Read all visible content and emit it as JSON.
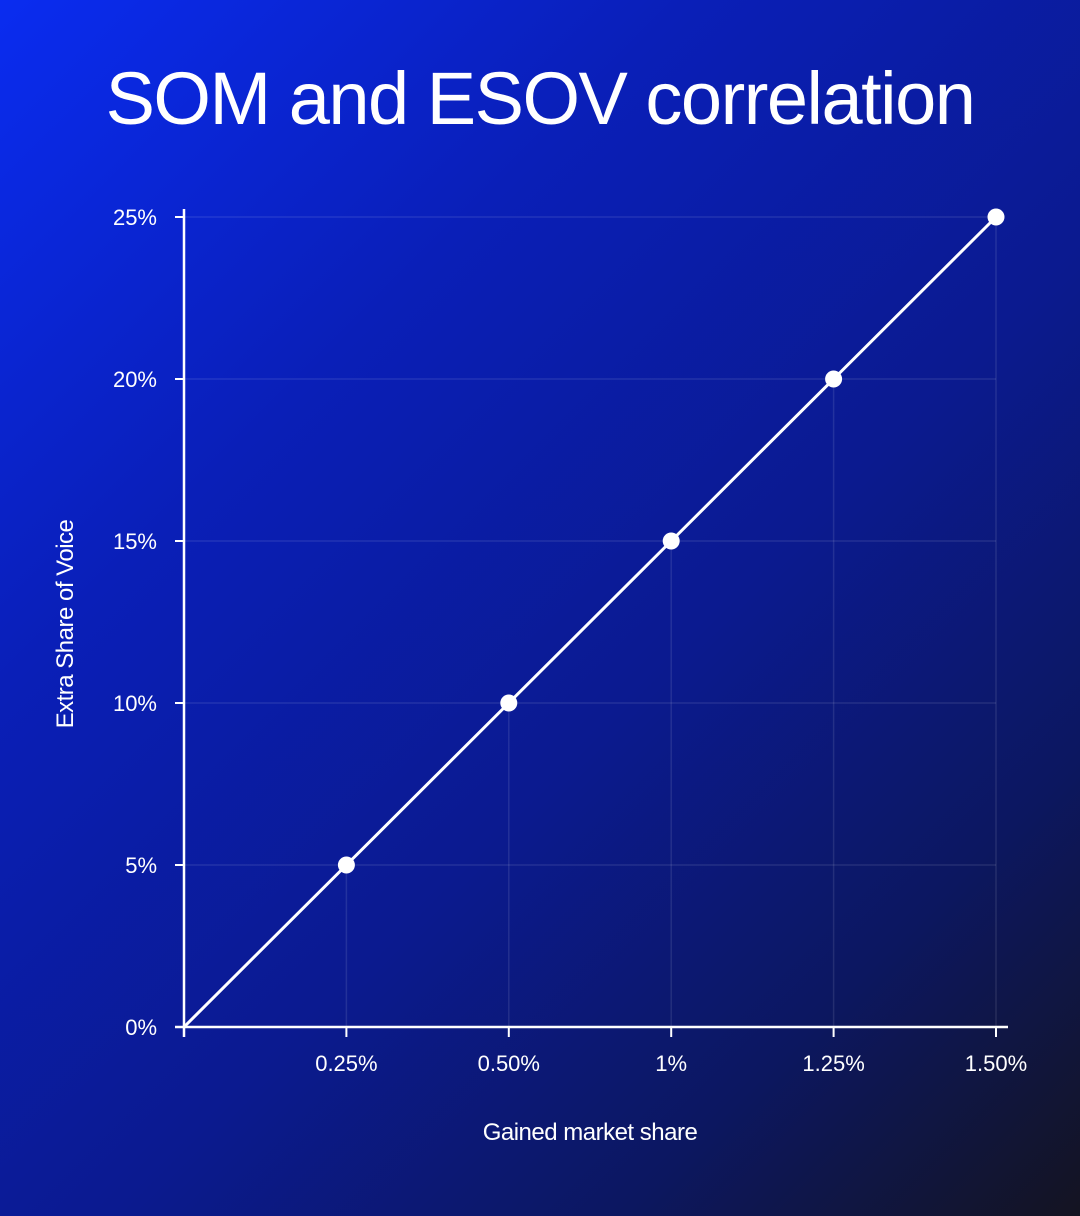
{
  "title": "SOM and ESOV correlation",
  "chart_data": {
    "type": "line",
    "title": "SOM and ESOV correlation",
    "xlabel": "Gained market share",
    "ylabel": "Extra Share of Voice",
    "categories": [
      "0.25%",
      "0.50%",
      "1%",
      "1.25%",
      "1.50%"
    ],
    "y_ticks": [
      "0%",
      "5%",
      "10%",
      "15%",
      "20%",
      "25%"
    ],
    "ylim": [
      0,
      25
    ],
    "series": [
      {
        "name": "ESOV",
        "values": [
          5,
          10,
          15,
          20,
          25
        ]
      }
    ],
    "line_starts_at_origin": true,
    "grid": true,
    "line_color": "#ffffff",
    "marker_color": "#ffffff"
  }
}
